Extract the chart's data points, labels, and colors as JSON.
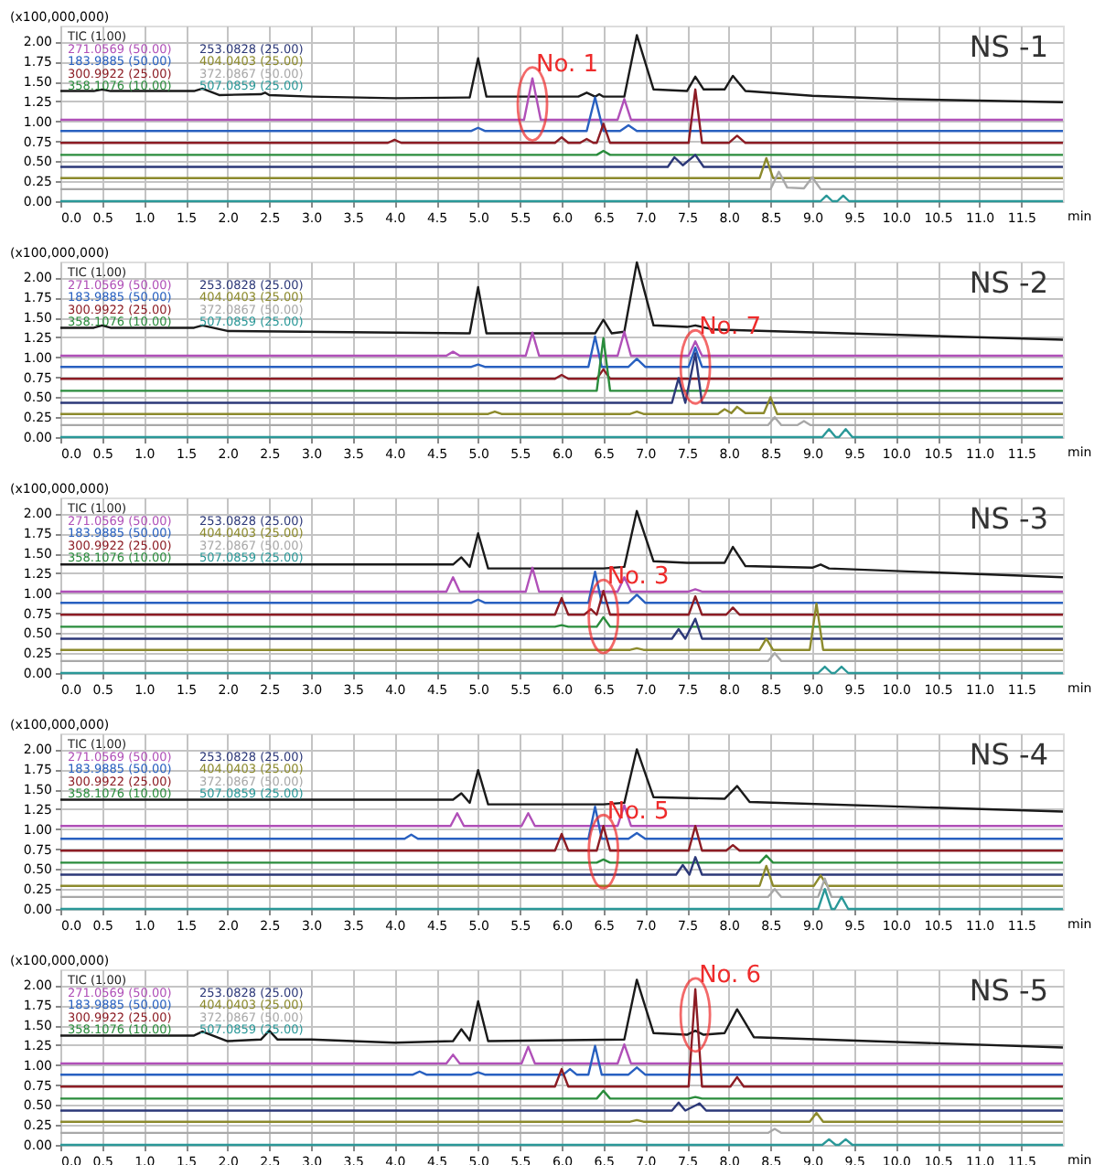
{
  "chart_data": [
    {
      "type": "line",
      "xlabel": "min",
      "ylabel": "(x100,000,000)",
      "xlim": [
        0,
        12
      ],
      "ylim": [
        0,
        2.2
      ],
      "grid": true,
      "legend": "top left",
      "xticks": [
        {
          "value": 0,
          "label": "0.0"
        },
        {
          "value": 0.5,
          "label": "0.5"
        },
        {
          "value": 1,
          "label": "1.0"
        },
        {
          "value": 1.5,
          "label": "1.5"
        },
        {
          "value": 2,
          "label": "2.0"
        },
        {
          "value": 2.5,
          "label": "2.5"
        },
        {
          "value": 3,
          "label": "3.0"
        },
        {
          "value": 3.5,
          "label": "3.5"
        },
        {
          "value": 4,
          "label": "4.0"
        },
        {
          "value": 4.5,
          "label": "4.5"
        },
        {
          "value": 5,
          "label": "5.0"
        },
        {
          "value": 5.5,
          "label": "5.5"
        },
        {
          "value": 6,
          "label": "6.0"
        },
        {
          "value": 6.5,
          "label": "6.5"
        },
        {
          "value": 7,
          "label": "7.0"
        },
        {
          "value": 7.5,
          "label": "7.5"
        },
        {
          "value": 8,
          "label": "8.0"
        },
        {
          "value": 8.5,
          "label": "8.5"
        },
        {
          "value": 9,
          "label": "9.0"
        },
        {
          "value": 9.5,
          "label": "9.5"
        },
        {
          "value": 10,
          "label": "10.0"
        },
        {
          "value": 10.5,
          "label": "10.5"
        },
        {
          "value": 11,
          "label": "11.0"
        },
        {
          "value": 11.5,
          "label": "11.5"
        }
      ],
      "yticks": [
        {
          "value": 0,
          "label": "0.00"
        },
        {
          "value": 0.25,
          "label": "0.25"
        },
        {
          "value": 0.5,
          "label": "0.50"
        },
        {
          "value": 0.75,
          "label": "0.75"
        },
        {
          "value": 1,
          "label": "1.00"
        },
        {
          "value": 1.25,
          "label": "1.25"
        },
        {
          "value": 1.5,
          "label": "1.50"
        },
        {
          "value": 1.75,
          "label": "1.75"
        },
        {
          "value": 2,
          "label": "2.00"
        }
      ],
      "annotations": [
        "NS -1",
        {
          "text": "No. 1",
          "x": 5.65,
          "y": 1.54
        }
      ],
      "series": [
        {
          "name": "TIC (1.00)",
          "color": "#1a1a1a",
          "x": [
            0,
            0.4,
            0.5,
            0.6,
            1.6,
            1.7,
            1.9,
            2.4,
            2.45,
            2.5,
            3.0,
            4.0,
            4.9,
            5.0,
            5.1,
            6.2,
            6.3,
            6.4,
            6.45,
            6.5,
            6.75,
            6.9,
            7.1,
            7.5,
            7.6,
            7.7,
            7.95,
            8.05,
            8.2,
            9.0,
            10.0,
            12.0
          ],
          "values": [
            1.38,
            1.38,
            1.4,
            1.38,
            1.38,
            1.41,
            1.33,
            1.34,
            1.36,
            1.33,
            1.31,
            1.29,
            1.3,
            1.79,
            1.31,
            1.31,
            1.36,
            1.31,
            1.34,
            1.31,
            1.31,
            2.08,
            1.4,
            1.38,
            1.56,
            1.4,
            1.4,
            1.57,
            1.38,
            1.32,
            1.28,
            1.24
          ]
        },
        {
          "name": "271.0569 (50.00)",
          "color": "#b050b8",
          "x": [
            0,
            5.55,
            5.65,
            5.75,
            6.67,
            6.75,
            6.83,
            12
          ],
          "values": [
            1.02,
            1.02,
            1.54,
            1.02,
            1.02,
            1.28,
            1.02,
            1.02
          ]
        },
        {
          "name": "183.9885 (50.00)",
          "color": "#2860c0",
          "x": [
            0,
            4.92,
            5.0,
            5.08,
            6.3,
            6.4,
            6.5,
            6.7,
            6.8,
            6.9,
            12
          ],
          "values": [
            0.88,
            0.88,
            0.92,
            0.88,
            0.88,
            1.3,
            0.88,
            0.88,
            0.95,
            0.88,
            0.88
          ]
        },
        {
          "name": "300.9922 (25.00)",
          "color": "#8c1c24",
          "x": [
            0,
            3.92,
            4.0,
            4.08,
            5.92,
            6.0,
            6.08,
            6.22,
            6.3,
            6.38,
            6.42,
            6.5,
            6.58,
            7.52,
            7.6,
            7.68,
            8.0,
            8.1,
            8.2,
            12
          ],
          "values": [
            0.73,
            0.73,
            0.77,
            0.73,
            0.73,
            0.8,
            0.73,
            0.73,
            0.78,
            0.73,
            0.73,
            0.97,
            0.73,
            0.73,
            1.4,
            0.73,
            0.73,
            0.82,
            0.73,
            0.73
          ]
        },
        {
          "name": "358.1076 (10.00)",
          "color": "#2a8c3c",
          "x": [
            0,
            6.42,
            6.5,
            6.58,
            12
          ],
          "values": [
            0.58,
            0.58,
            0.63,
            0.58,
            0.58
          ]
        },
        {
          "name": "253.0828 (25.00)",
          "color": "#2c3878",
          "x": [
            0,
            7.27,
            7.35,
            7.45,
            7.6,
            7.7,
            12
          ],
          "values": [
            0.43,
            0.43,
            0.55,
            0.45,
            0.58,
            0.43,
            0.43
          ]
        },
        {
          "name": "404.0403 (25.00)",
          "color": "#8c8a2c",
          "x": [
            0,
            8.37,
            8.45,
            8.53,
            12
          ],
          "values": [
            0.29,
            0.29,
            0.54,
            0.29,
            0.29
          ]
        },
        {
          "name": "372.0867 (50.00)",
          "color": "#a8a8a8",
          "x": [
            0,
            8.5,
            8.6,
            8.7,
            8.9,
            9.0,
            9.1,
            12
          ],
          "values": [
            0.15,
            0.15,
            0.37,
            0.17,
            0.16,
            0.3,
            0.15,
            0.15
          ]
        },
        {
          "name": "507.0859 (25.00)",
          "color": "#2a9898",
          "x": [
            0,
            9.1,
            9.17,
            9.24,
            9.3,
            9.37,
            9.44,
            12
          ],
          "values": [
            0,
            0,
            0.07,
            0,
            0,
            0.07,
            0,
            0
          ]
        }
      ]
    },
    {
      "type": "line",
      "xlabel": "min",
      "ylabel": "(x100,000,000)",
      "xlim": [
        0,
        12
      ],
      "ylim": [
        0,
        2.2
      ],
      "grid": true,
      "legend": "top left",
      "xticks": [
        {
          "value": 0,
          "label": "0.0"
        },
        {
          "value": 0.5,
          "label": "0.5"
        },
        {
          "value": 1,
          "label": "1.0"
        },
        {
          "value": 1.5,
          "label": "1.5"
        },
        {
          "value": 2,
          "label": "2.0"
        },
        {
          "value": 2.5,
          "label": "2.5"
        },
        {
          "value": 3,
          "label": "3.0"
        },
        {
          "value": 3.5,
          "label": "3.5"
        },
        {
          "value": 4,
          "label": "4.0"
        },
        {
          "value": 4.5,
          "label": "4.5"
        },
        {
          "value": 5,
          "label": "5.0"
        },
        {
          "value": 5.5,
          "label": "5.5"
        },
        {
          "value": 6,
          "label": "6.0"
        },
        {
          "value": 6.5,
          "label": "6.5"
        },
        {
          "value": 7,
          "label": "7.0"
        },
        {
          "value": 7.5,
          "label": "7.5"
        },
        {
          "value": 8,
          "label": "8.0"
        },
        {
          "value": 8.5,
          "label": "8.5"
        },
        {
          "value": 9,
          "label": "9.0"
        },
        {
          "value": 9.5,
          "label": "9.5"
        },
        {
          "value": 10,
          "label": "10.0"
        },
        {
          "value": 10.5,
          "label": "10.5"
        },
        {
          "value": 11,
          "label": "11.0"
        },
        {
          "value": 11.5,
          "label": "11.5"
        }
      ],
      "yticks": [
        {
          "value": 0,
          "label": "0.00"
        },
        {
          "value": 0.25,
          "label": "0.25"
        },
        {
          "value": 0.5,
          "label": "0.50"
        },
        {
          "value": 0.75,
          "label": "0.75"
        },
        {
          "value": 1,
          "label": "1.00"
        },
        {
          "value": 1.25,
          "label": "1.25"
        },
        {
          "value": 1.5,
          "label": "1.50"
        },
        {
          "value": 1.75,
          "label": "1.75"
        },
        {
          "value": 2,
          "label": "2.00"
        }
      ],
      "annotations": [
        "NS -2",
        {
          "text": "No. 7",
          "x": 7.6,
          "y": 1.2
        }
      ],
      "series": [
        {
          "name": "TIC (1.00)",
          "color": "#1a1a1a",
          "x": [
            0,
            0.4,
            0.5,
            0.6,
            1.6,
            1.7,
            2.0,
            4.9,
            5.0,
            5.1,
            6.4,
            6.5,
            6.6,
            6.75,
            6.9,
            7.1,
            7.5,
            7.6,
            7.8,
            12
          ],
          "values": [
            1.37,
            1.37,
            1.4,
            1.37,
            1.37,
            1.4,
            1.33,
            1.3,
            1.88,
            1.3,
            1.3,
            1.47,
            1.3,
            1.32,
            2.19,
            1.4,
            1.38,
            1.4,
            1.35,
            1.22
          ]
        },
        {
          "name": "271.0569 (50.00)",
          "color": "#b050b8",
          "x": [
            0,
            4.62,
            4.7,
            4.78,
            5.57,
            5.65,
            5.73,
            6.67,
            6.75,
            6.83,
            7.52,
            7.6,
            7.68,
            12
          ],
          "values": [
            1.02,
            1.02,
            1.07,
            1.02,
            1.02,
            1.31,
            1.02,
            1.02,
            1.32,
            1.02,
            1.02,
            1.2,
            1.02,
            1.02
          ]
        },
        {
          "name": "183.9885 (50.00)",
          "color": "#2860c0",
          "x": [
            0,
            4.92,
            5.0,
            5.08,
            6.32,
            6.4,
            6.48,
            6.8,
            6.9,
            7.0,
            7.52,
            7.6,
            7.68,
            12
          ],
          "values": [
            0.88,
            0.88,
            0.91,
            0.88,
            0.88,
            1.26,
            0.88,
            0.88,
            0.98,
            0.88,
            0.88,
            1.12,
            0.88,
            0.88
          ]
        },
        {
          "name": "300.9922 (25.00)",
          "color": "#8c1c24",
          "x": [
            0,
            5.92,
            6.0,
            6.08,
            6.42,
            6.5,
            6.58,
            12
          ],
          "values": [
            0.73,
            0.73,
            0.78,
            0.73,
            0.73,
            0.85,
            0.73,
            0.73
          ]
        },
        {
          "name": "358.1076 (10.00)",
          "color": "#2a8c3c",
          "x": [
            0,
            6.42,
            6.5,
            6.58,
            12
          ],
          "values": [
            0.58,
            0.58,
            1.24,
            0.58,
            0.58
          ]
        },
        {
          "name": "253.0828 (25.00)",
          "color": "#2c3878",
          "x": [
            0,
            7.32,
            7.4,
            7.48,
            7.6,
            7.68,
            12
          ],
          "values": [
            0.43,
            0.43,
            0.74,
            0.43,
            1.05,
            0.43,
            0.43
          ]
        },
        {
          "name": "404.0403 (25.00)",
          "color": "#8c8a2c",
          "x": [
            0,
            5.12,
            5.2,
            5.28,
            6.82,
            6.9,
            6.98,
            7.87,
            7.95,
            8.03,
            8.1,
            8.2,
            8.42,
            8.5,
            8.58,
            12
          ],
          "values": [
            0.29,
            0.29,
            0.32,
            0.29,
            0.29,
            0.32,
            0.29,
            0.29,
            0.35,
            0.3,
            0.38,
            0.3,
            0.3,
            0.5,
            0.29,
            0.29
          ]
        },
        {
          "name": "372.0867 (50.00)",
          "color": "#a8a8a8",
          "x": [
            0,
            8.47,
            8.55,
            8.63,
            8.82,
            8.9,
            8.98,
            12
          ],
          "values": [
            0.15,
            0.15,
            0.25,
            0.15,
            0.15,
            0.2,
            0.15,
            0.15
          ]
        },
        {
          "name": "507.0859 (25.00)",
          "color": "#2a9898",
          "x": [
            0,
            9.12,
            9.2,
            9.28,
            9.32,
            9.4,
            9.48,
            12
          ],
          "values": [
            0,
            0,
            0.1,
            0,
            0,
            0.1,
            0,
            0
          ]
        }
      ]
    },
    {
      "type": "line",
      "xlabel": "min",
      "ylabel": "(x100,000,000)",
      "xlim": [
        0,
        12
      ],
      "ylim": [
        0,
        2.2
      ],
      "grid": true,
      "legend": "top left",
      "xticks": [
        {
          "value": 0,
          "label": "0.0"
        },
        {
          "value": 0.5,
          "label": "0.5"
        },
        {
          "value": 1,
          "label": "1.0"
        },
        {
          "value": 1.5,
          "label": "1.5"
        },
        {
          "value": 2,
          "label": "2.0"
        },
        {
          "value": 2.5,
          "label": "2.5"
        },
        {
          "value": 3,
          "label": "3.0"
        },
        {
          "value": 3.5,
          "label": "3.5"
        },
        {
          "value": 4,
          "label": "4.0"
        },
        {
          "value": 4.5,
          "label": "4.5"
        },
        {
          "value": 5,
          "label": "5.0"
        },
        {
          "value": 5.5,
          "label": "5.5"
        },
        {
          "value": 6,
          "label": "6.0"
        },
        {
          "value": 6.5,
          "label": "6.5"
        },
        {
          "value": 7,
          "label": "7.0"
        },
        {
          "value": 7.5,
          "label": "7.5"
        },
        {
          "value": 8,
          "label": "8.0"
        },
        {
          "value": 8.5,
          "label": "8.5"
        },
        {
          "value": 9,
          "label": "9.0"
        },
        {
          "value": 9.5,
          "label": "9.5"
        },
        {
          "value": 10,
          "label": "10.0"
        },
        {
          "value": 10.5,
          "label": "10.5"
        },
        {
          "value": 11,
          "label": "11.0"
        },
        {
          "value": 11.5,
          "label": "11.5"
        }
      ],
      "yticks": [
        {
          "value": 0,
          "label": "0.00"
        },
        {
          "value": 0.25,
          "label": "0.25"
        },
        {
          "value": 0.5,
          "label": "0.50"
        },
        {
          "value": 0.75,
          "label": "0.75"
        },
        {
          "value": 1,
          "label": "1.00"
        },
        {
          "value": 1.25,
          "label": "1.25"
        },
        {
          "value": 1.5,
          "label": "1.50"
        },
        {
          "value": 1.75,
          "label": "1.75"
        },
        {
          "value": 2,
          "label": "2.00"
        }
      ],
      "annotations": [
        "NS -3",
        {
          "text": "No. 3",
          "x": 6.5,
          "y": 1.03
        }
      ],
      "series": [
        {
          "name": "TIC (1.00)",
          "color": "#1a1a1a",
          "x": [
            0,
            4.7,
            4.8,
            4.9,
            5.0,
            5.12,
            6.5,
            6.75,
            6.9,
            7.1,
            7.5,
            7.95,
            8.05,
            8.2,
            9.0,
            9.1,
            9.2,
            12
          ],
          "values": [
            1.36,
            1.36,
            1.45,
            1.33,
            1.75,
            1.31,
            1.31,
            1.33,
            2.03,
            1.4,
            1.38,
            1.38,
            1.58,
            1.34,
            1.32,
            1.36,
            1.31,
            1.2
          ]
        },
        {
          "name": "271.0569 (50.00)",
          "color": "#b050b8",
          "x": [
            0,
            4.62,
            4.7,
            4.78,
            5.57,
            5.65,
            5.73,
            6.67,
            6.75,
            6.83,
            7.52,
            7.6,
            7.68,
            12
          ],
          "values": [
            1.02,
            1.02,
            1.2,
            1.02,
            1.02,
            1.32,
            1.02,
            1.02,
            1.2,
            1.02,
            1.02,
            1.05,
            1.02,
            1.02
          ]
        },
        {
          "name": "183.9885 (50.00)",
          "color": "#2860c0",
          "x": [
            0,
            4.92,
            5.0,
            5.08,
            6.32,
            6.4,
            6.48,
            6.8,
            6.9,
            7.0,
            12
          ],
          "values": [
            0.88,
            0.88,
            0.92,
            0.88,
            0.88,
            1.27,
            0.88,
            0.88,
            0.98,
            0.88,
            0.88
          ]
        },
        {
          "name": "300.9922 (25.00)",
          "color": "#8c1c24",
          "x": [
            0,
            5.92,
            6.0,
            6.08,
            6.27,
            6.35,
            6.42,
            6.5,
            6.58,
            7.52,
            7.6,
            7.68,
            7.97,
            8.05,
            8.13,
            12
          ],
          "values": [
            0.73,
            0.73,
            0.94,
            0.73,
            0.73,
            0.8,
            0.73,
            1.03,
            0.73,
            0.73,
            0.96,
            0.73,
            0.73,
            0.82,
            0.73,
            0.73
          ]
        },
        {
          "name": "358.1076 (10.00)",
          "color": "#2a8c3c",
          "x": [
            0,
            5.92,
            6.0,
            6.08,
            6.42,
            6.5,
            6.58,
            12
          ],
          "values": [
            0.58,
            0.58,
            0.6,
            0.58,
            0.58,
            0.7,
            0.58,
            0.58
          ]
        },
        {
          "name": "253.0828 (25.00)",
          "color": "#2c3878",
          "x": [
            0,
            7.32,
            7.4,
            7.48,
            7.6,
            7.68,
            12
          ],
          "values": [
            0.43,
            0.43,
            0.55,
            0.43,
            0.68,
            0.43,
            0.43
          ]
        },
        {
          "name": "404.0403 (25.00)",
          "color": "#8c8a2c",
          "x": [
            0,
            6.82,
            6.9,
            6.98,
            8.37,
            8.45,
            8.53,
            8.97,
            9.05,
            9.13,
            12
          ],
          "values": [
            0.29,
            0.29,
            0.31,
            0.29,
            0.29,
            0.43,
            0.29,
            0.29,
            0.87,
            0.29,
            0.29
          ]
        },
        {
          "name": "372.0867 (50.00)",
          "color": "#a8a8a8",
          "x": [
            0,
            8.47,
            8.55,
            8.63,
            12
          ],
          "values": [
            0.15,
            0.15,
            0.25,
            0.15,
            0.15
          ]
        },
        {
          "name": "507.0859 (25.00)",
          "color": "#2a9898",
          "x": [
            0,
            9.07,
            9.15,
            9.23,
            9.27,
            9.35,
            9.43,
            12
          ],
          "values": [
            0,
            0,
            0.08,
            0,
            0,
            0.08,
            0,
            0
          ]
        }
      ]
    },
    {
      "type": "line",
      "xlabel": "min",
      "ylabel": "(x100,000,000)",
      "xlim": [
        0,
        12
      ],
      "ylim": [
        0,
        2.2
      ],
      "grid": true,
      "legend": "top left",
      "xticks": [
        {
          "value": 0,
          "label": "0.0"
        },
        {
          "value": 0.5,
          "label": "0.5"
        },
        {
          "value": 1,
          "label": "1.0"
        },
        {
          "value": 1.5,
          "label": "1.5"
        },
        {
          "value": 2,
          "label": "2.0"
        },
        {
          "value": 2.5,
          "label": "2.5"
        },
        {
          "value": 3,
          "label": "3.0"
        },
        {
          "value": 3.5,
          "label": "3.5"
        },
        {
          "value": 4,
          "label": "4.0"
        },
        {
          "value": 4.5,
          "label": "4.5"
        },
        {
          "value": 5,
          "label": "5.0"
        },
        {
          "value": 5.5,
          "label": "5.5"
        },
        {
          "value": 6,
          "label": "6.0"
        },
        {
          "value": 6.5,
          "label": "6.5"
        },
        {
          "value": 7,
          "label": "7.0"
        },
        {
          "value": 7.5,
          "label": "7.5"
        },
        {
          "value": 8,
          "label": "8.0"
        },
        {
          "value": 8.5,
          "label": "8.5"
        },
        {
          "value": 9,
          "label": "9.0"
        },
        {
          "value": 9.5,
          "label": "9.5"
        },
        {
          "value": 10,
          "label": "10.0"
        },
        {
          "value": 10.5,
          "label": "10.5"
        },
        {
          "value": 11,
          "label": "11.0"
        },
        {
          "value": 11.5,
          "label": "11.5"
        }
      ],
      "yticks": [
        {
          "value": 0,
          "label": "0.00"
        },
        {
          "value": 0.25,
          "label": "0.25"
        },
        {
          "value": 0.5,
          "label": "0.50"
        },
        {
          "value": 0.75,
          "label": "0.75"
        },
        {
          "value": 1,
          "label": "1.00"
        },
        {
          "value": 1.25,
          "label": "1.25"
        },
        {
          "value": 1.5,
          "label": "1.50"
        },
        {
          "value": 1.75,
          "label": "1.75"
        },
        {
          "value": 2,
          "label": "2.00"
        }
      ],
      "annotations": [
        "NS -4",
        {
          "text": "No. 5",
          "x": 6.5,
          "y": 1.04
        }
      ],
      "series": [
        {
          "name": "TIC (1.00)",
          "color": "#1a1a1a",
          "x": [
            0,
            4.7,
            4.8,
            4.9,
            5.0,
            5.12,
            6.5,
            6.75,
            6.9,
            7.1,
            7.95,
            8.1,
            8.25,
            12
          ],
          "values": [
            1.37,
            1.37,
            1.45,
            1.33,
            1.74,
            1.31,
            1.31,
            1.33,
            2.0,
            1.4,
            1.38,
            1.54,
            1.34,
            1.22
          ]
        },
        {
          "name": "271.0569 (50.00)",
          "color": "#b050b8",
          "x": [
            0,
            4.67,
            4.75,
            4.83,
            5.52,
            5.6,
            5.68,
            6.67,
            6.75,
            6.83,
            12
          ],
          "values": [
            1.04,
            1.04,
            1.2,
            1.04,
            1.04,
            1.2,
            1.04,
            1.04,
            1.3,
            1.04,
            1.04
          ]
        },
        {
          "name": "183.9885 (50.00)",
          "color": "#2860c0",
          "x": [
            0,
            4.12,
            4.2,
            4.28,
            6.32,
            6.4,
            6.48,
            6.8,
            6.9,
            7.0,
            12
          ],
          "values": [
            0.88,
            0.88,
            0.93,
            0.88,
            0.88,
            1.28,
            0.88,
            0.88,
            0.95,
            0.88,
            0.88
          ]
        },
        {
          "name": "300.9922 (25.00)",
          "color": "#8c1c24",
          "x": [
            0,
            5.92,
            6.0,
            6.08,
            6.42,
            6.5,
            6.58,
            7.52,
            7.6,
            7.68,
            7.97,
            8.05,
            8.13,
            12
          ],
          "values": [
            0.73,
            0.73,
            0.94,
            0.73,
            0.73,
            1.04,
            0.73,
            0.73,
            1.04,
            0.73,
            0.73,
            0.8,
            0.73,
            0.73
          ]
        },
        {
          "name": "358.1076 (10.00)",
          "color": "#2a8c3c",
          "x": [
            0,
            6.42,
            6.5,
            6.58,
            8.37,
            8.45,
            8.53,
            12
          ],
          "values": [
            0.58,
            0.58,
            0.62,
            0.58,
            0.58,
            0.67,
            0.58,
            0.58
          ]
        },
        {
          "name": "253.0828 (25.00)",
          "color": "#2c3878",
          "x": [
            0,
            7.37,
            7.45,
            7.53,
            7.6,
            7.68,
            12
          ],
          "values": [
            0.43,
            0.43,
            0.55,
            0.43,
            0.65,
            0.43,
            0.43
          ]
        },
        {
          "name": "404.0403 (25.00)",
          "color": "#8c8a2c",
          "x": [
            0,
            8.37,
            8.45,
            8.53,
            9.02,
            9.1,
            9.18,
            12
          ],
          "values": [
            0.29,
            0.29,
            0.54,
            0.29,
            0.29,
            0.42,
            0.29,
            0.29
          ]
        },
        {
          "name": "372.0867 (50.00)",
          "color": "#a8a8a8",
          "x": [
            0,
            8.47,
            8.55,
            8.63,
            9.07,
            9.15,
            9.23,
            12
          ],
          "values": [
            0.15,
            0.15,
            0.25,
            0.15,
            0.15,
            0.38,
            0.15,
            0.15
          ]
        },
        {
          "name": "507.0859 (25.00)",
          "color": "#2a9898",
          "x": [
            0,
            9.07,
            9.15,
            9.23,
            9.27,
            9.35,
            9.43,
            12
          ],
          "values": [
            0,
            0,
            0.25,
            0,
            0,
            0.15,
            0,
            0
          ]
        }
      ]
    },
    {
      "type": "line",
      "xlabel": "min",
      "ylabel": "(x100,000,000)",
      "xlim": [
        0,
        12
      ],
      "ylim": [
        0,
        2.2
      ],
      "grid": true,
      "legend": "top left",
      "xticks": [
        {
          "value": 0,
          "label": "0.0"
        },
        {
          "value": 0.5,
          "label": "0.5"
        },
        {
          "value": 1,
          "label": "1.0"
        },
        {
          "value": 1.5,
          "label": "1.5"
        },
        {
          "value": 2,
          "label": "2.0"
        },
        {
          "value": 2.5,
          "label": "2.5"
        },
        {
          "value": 3,
          "label": "3.0"
        },
        {
          "value": 3.5,
          "label": "3.5"
        },
        {
          "value": 4,
          "label": "4.0"
        },
        {
          "value": 4.5,
          "label": "4.5"
        },
        {
          "value": 5,
          "label": "5.0"
        },
        {
          "value": 5.5,
          "label": "5.5"
        },
        {
          "value": 6,
          "label": "6.0"
        },
        {
          "value": 6.5,
          "label": "6.5"
        },
        {
          "value": 7,
          "label": "7.0"
        },
        {
          "value": 7.5,
          "label": "7.5"
        },
        {
          "value": 8,
          "label": "8.0"
        },
        {
          "value": 8.5,
          "label": "8.5"
        },
        {
          "value": 9,
          "label": "9.0"
        },
        {
          "value": 9.5,
          "label": "9.5"
        },
        {
          "value": 10,
          "label": "10.0"
        },
        {
          "value": 10.5,
          "label": "10.5"
        },
        {
          "value": 11,
          "label": "11.0"
        },
        {
          "value": 11.5,
          "label": "11.5"
        }
      ],
      "yticks": [
        {
          "value": 0,
          "label": "0.00"
        },
        {
          "value": 0.25,
          "label": "0.25"
        },
        {
          "value": 0.5,
          "label": "0.50"
        },
        {
          "value": 0.75,
          "label": "0.75"
        },
        {
          "value": 1,
          "label": "1.00"
        },
        {
          "value": 1.25,
          "label": "1.25"
        },
        {
          "value": 1.5,
          "label": "1.50"
        },
        {
          "value": 1.75,
          "label": "1.75"
        },
        {
          "value": 2,
          "label": "2.00"
        }
      ],
      "annotations": [
        "NS -5",
        {
          "text": "No. 6",
          "x": 7.6,
          "y": 1.95
        }
      ],
      "series": [
        {
          "name": "TIC (1.00)",
          "color": "#1a1a1a",
          "x": [
            0,
            1.6,
            1.7,
            2.0,
            2.4,
            2.5,
            2.6,
            3.0,
            4.0,
            4.7,
            4.8,
            4.9,
            5.0,
            5.12,
            6.75,
            6.9,
            7.1,
            7.5,
            7.6,
            7.7,
            7.95,
            8.1,
            8.3,
            12
          ],
          "values": [
            1.37,
            1.37,
            1.42,
            1.3,
            1.32,
            1.43,
            1.32,
            1.32,
            1.28,
            1.3,
            1.45,
            1.31,
            1.8,
            1.3,
            1.32,
            2.07,
            1.4,
            1.38,
            1.43,
            1.38,
            1.4,
            1.7,
            1.35,
            1.22
          ]
        },
        {
          "name": "271.0569 (50.00)",
          "color": "#b050b8",
          "x": [
            0,
            4.62,
            4.7,
            4.78,
            5.52,
            5.6,
            5.68,
            6.67,
            6.75,
            6.83,
            12
          ],
          "values": [
            1.02,
            1.02,
            1.13,
            1.02,
            1.02,
            1.23,
            1.02,
            1.02,
            1.26,
            1.02,
            1.02
          ]
        },
        {
          "name": "183.9885 (50.00)",
          "color": "#2860c0",
          "x": [
            0,
            4.22,
            4.3,
            4.38,
            4.92,
            5.0,
            5.08,
            6.02,
            6.1,
            6.18,
            6.32,
            6.4,
            6.48,
            6.8,
            6.9,
            7.0,
            12
          ],
          "values": [
            0.88,
            0.88,
            0.92,
            0.88,
            0.88,
            0.91,
            0.88,
            0.88,
            0.95,
            0.88,
            0.88,
            1.24,
            0.88,
            0.88,
            0.97,
            0.88,
            0.88
          ]
        },
        {
          "name": "300.9922 (25.00)",
          "color": "#8c1c24",
          "x": [
            0,
            5.92,
            6.0,
            6.08,
            7.52,
            7.6,
            7.68,
            8.02,
            8.1,
            8.18,
            12
          ],
          "values": [
            0.73,
            0.73,
            0.95,
            0.73,
            0.73,
            1.95,
            0.73,
            0.73,
            0.85,
            0.73,
            0.73
          ]
        },
        {
          "name": "358.1076 (10.00)",
          "color": "#2a8c3c",
          "x": [
            0,
            6.42,
            6.5,
            6.58,
            7.52,
            7.6,
            7.68,
            12
          ],
          "values": [
            0.58,
            0.58,
            0.68,
            0.58,
            0.58,
            0.6,
            0.58,
            0.58
          ]
        },
        {
          "name": "253.0828 (25.00)",
          "color": "#2c3878",
          "x": [
            0,
            7.32,
            7.4,
            7.48,
            7.65,
            7.73,
            12
          ],
          "values": [
            0.43,
            0.43,
            0.53,
            0.43,
            0.52,
            0.43,
            0.43
          ]
        },
        {
          "name": "404.0403 (25.00)",
          "color": "#8c8a2c",
          "x": [
            0,
            6.82,
            6.9,
            6.98,
            8.97,
            9.05,
            9.13,
            12
          ],
          "values": [
            0.29,
            0.29,
            0.31,
            0.29,
            0.29,
            0.4,
            0.29,
            0.29
          ]
        },
        {
          "name": "372.0867 (50.00)",
          "color": "#a8a8a8",
          "x": [
            0,
            8.47,
            8.55,
            8.63,
            12
          ],
          "values": [
            0.15,
            0.15,
            0.2,
            0.15,
            0.15
          ]
        },
        {
          "name": "507.0859 (25.00)",
          "color": "#2a9898",
          "x": [
            0,
            9.12,
            9.2,
            9.28,
            9.32,
            9.4,
            9.48,
            12
          ],
          "values": [
            0,
            0,
            0.07,
            0,
            0,
            0.07,
            0,
            0
          ]
        }
      ]
    }
  ]
}
